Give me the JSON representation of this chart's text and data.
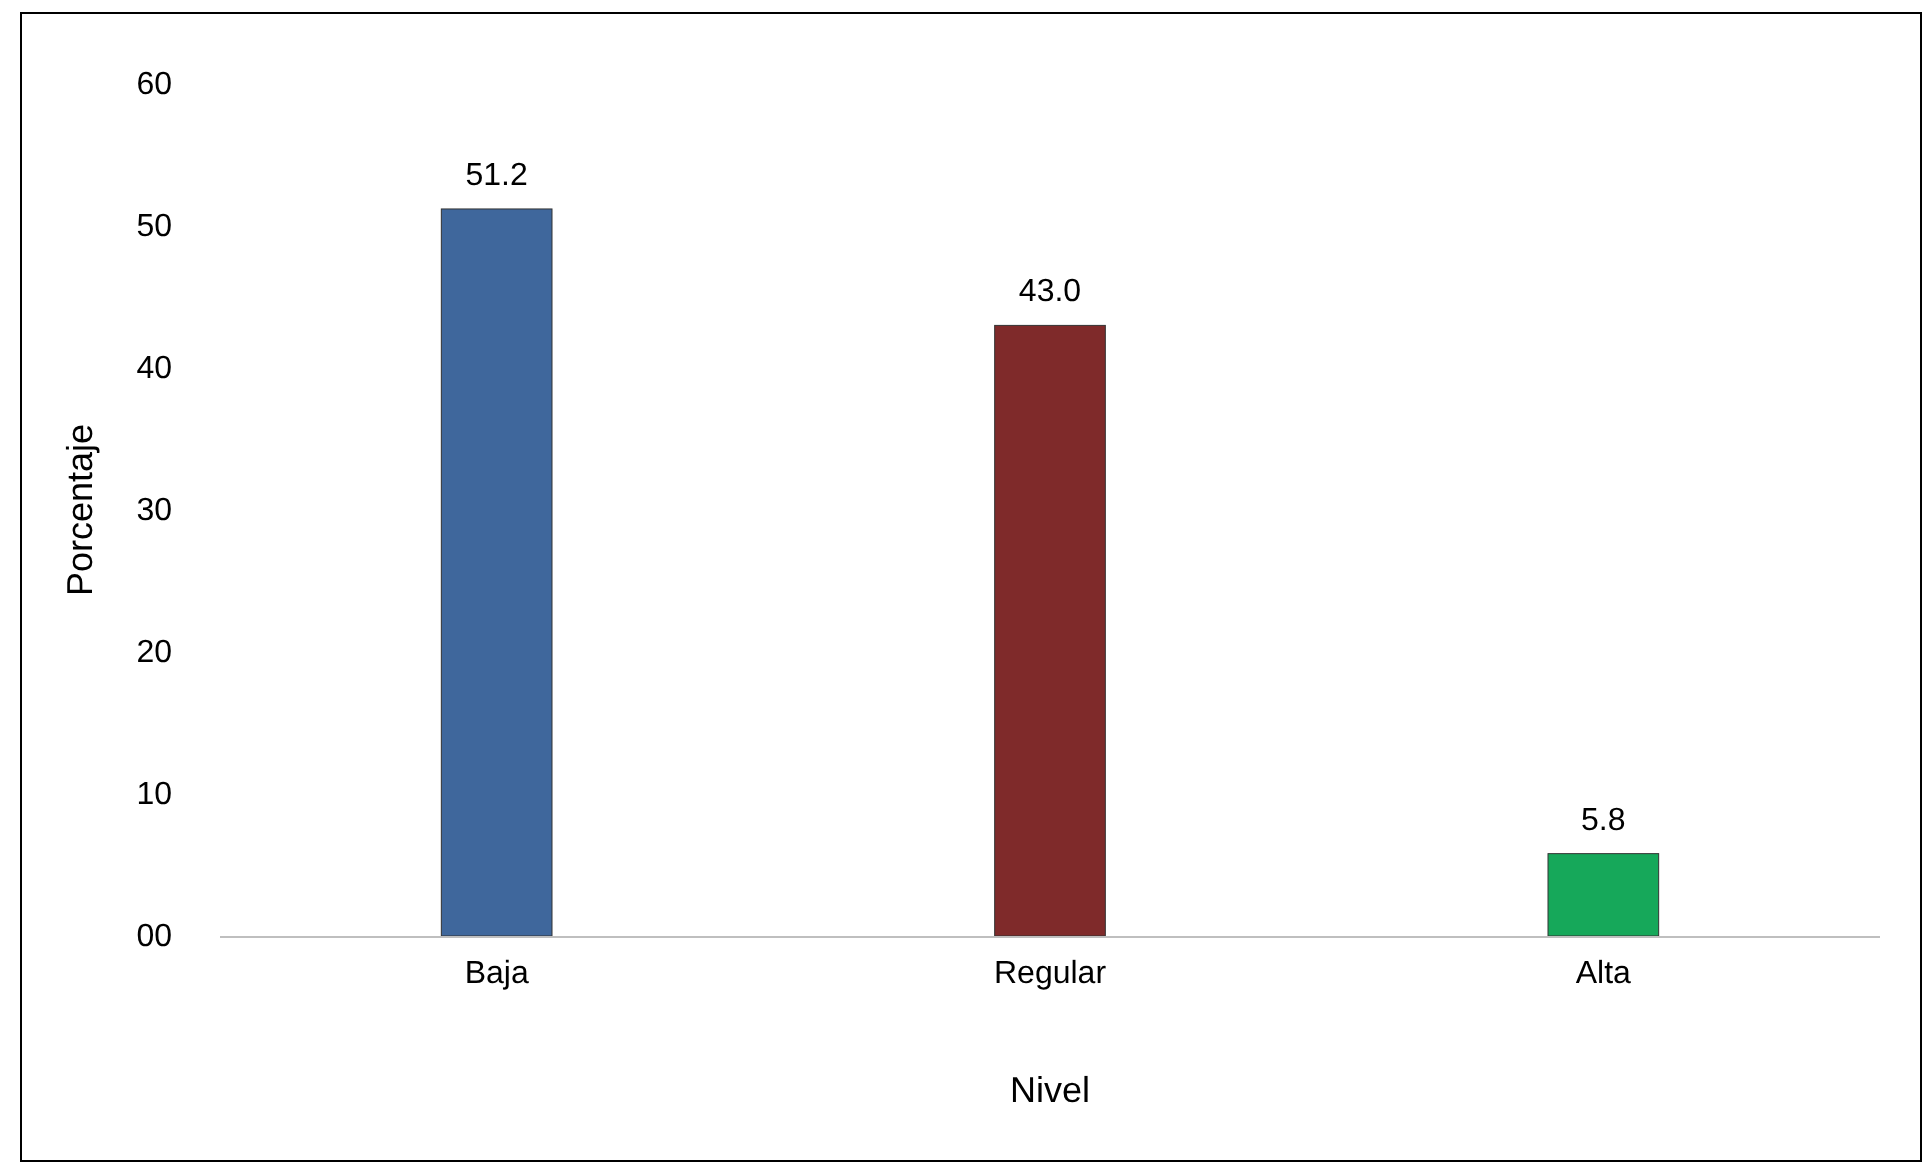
{
  "chart_data": {
    "type": "bar",
    "xlabel": "Nivel",
    "ylabel": "Porcentaje",
    "categories": [
      "Baja",
      "Regular",
      "Alta"
    ],
    "values": [
      51.2,
      43.0,
      5.8
    ],
    "colors": [
      "#3f679c",
      "#7f2a2a",
      "#16a85a"
    ],
    "value_labels": [
      "51.2",
      "43.0",
      "5.8"
    ],
    "ylim": [
      0,
      60
    ],
    "yticks": [
      {
        "value": 0,
        "label": "00"
      },
      10,
      20,
      30,
      40,
      50,
      60
    ],
    "grid": false
  }
}
